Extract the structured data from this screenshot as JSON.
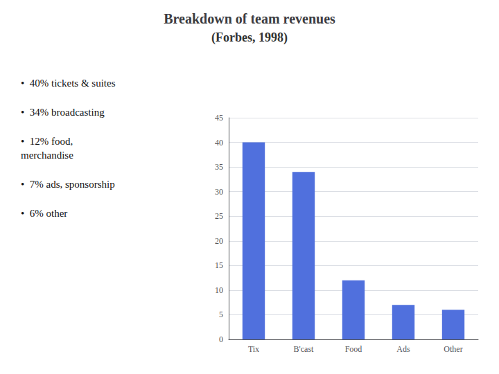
{
  "chart_data": {
    "type": "bar",
    "title": "Breakdown of team revenues",
    "subtitle": "(Forbes, 1998)",
    "categories": [
      "Tix",
      "B'cast",
      "Food",
      "Ads",
      "Other"
    ],
    "values": [
      40,
      34,
      12,
      7,
      6
    ],
    "ylim": [
      0,
      45
    ],
    "yticks": [
      0,
      5,
      10,
      15,
      20,
      25,
      30,
      35,
      40,
      45
    ],
    "grid": true,
    "annotations": [
      "•  40% tickets & suites",
      "•  34% broadcasting",
      "•  12% food,\nmerchandise",
      "•  7% ads, sponsorship",
      "•  6% other"
    ]
  }
}
